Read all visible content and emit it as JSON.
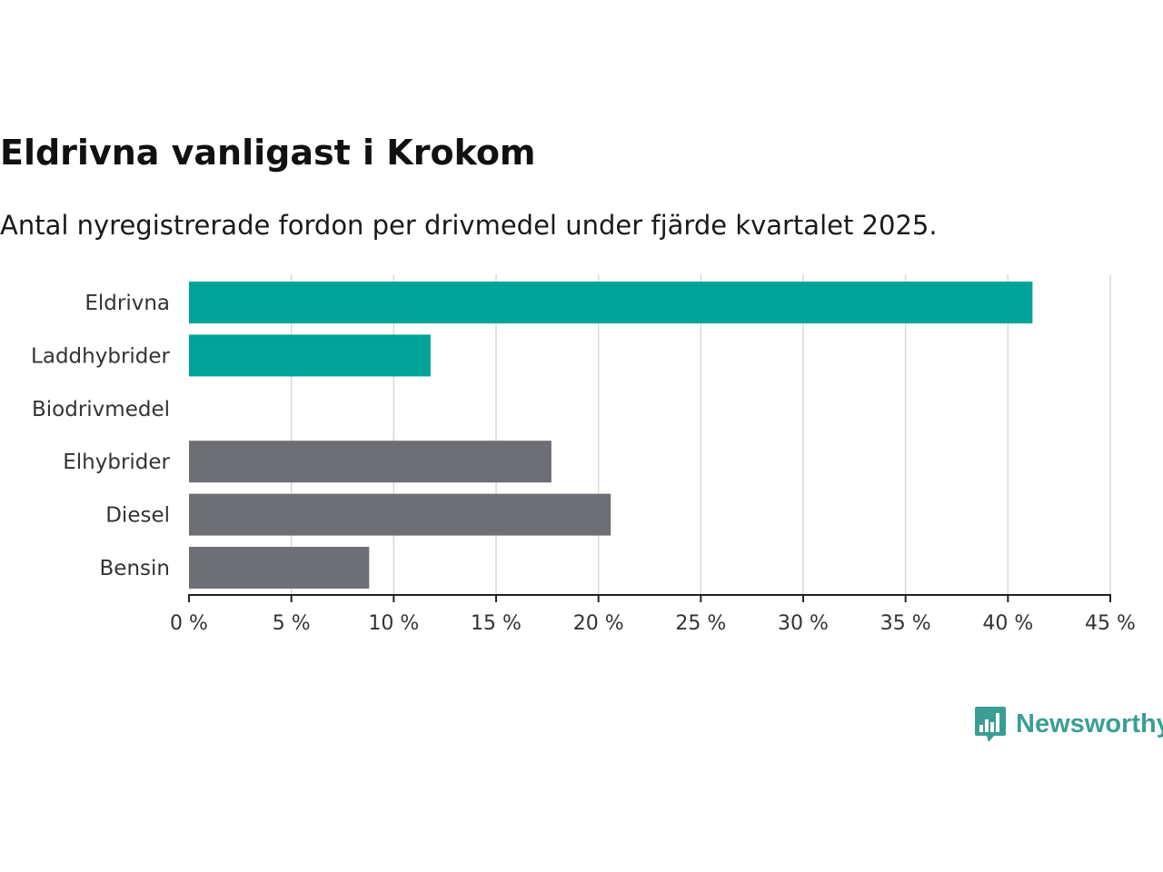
{
  "header": {
    "title": "Eldrivna vanligast i Krokom",
    "subtitle": "Antal nyregistrerade fordon per drivmedel under fjärde kvartalet 2025."
  },
  "brand": {
    "name": "Newsworthy",
    "logo_icon": "chart-bubble-icon",
    "color": "#3a9e94"
  },
  "colors": {
    "highlight": "#00a398",
    "muted": "#6e6e75",
    "grid": "#d9d9d9",
    "axis": "#222222"
  },
  "chart_data": {
    "type": "bar",
    "orientation": "horizontal",
    "title": "Eldrivna vanligast i Krokom",
    "subtitle": "Antal nyregistrerade fordon per drivmedel under fjärde kvartalet 2025.",
    "xlabel": "",
    "ylabel": "",
    "categories": [
      "Eldrivna",
      "Laddhybrider",
      "Biodrivmedel",
      "Elhybrider",
      "Diesel",
      "Bensin"
    ],
    "values": [
      41.2,
      11.8,
      0,
      17.7,
      20.6,
      8.8
    ],
    "highlight": [
      true,
      true,
      false,
      false,
      false,
      false
    ],
    "xlim": [
      0,
      45
    ],
    "xticks": [
      0,
      5,
      10,
      15,
      20,
      25,
      30,
      35,
      40,
      45
    ],
    "xtick_labels": [
      "0 %",
      "5 %",
      "10 %",
      "15 %",
      "20 %",
      "25 %",
      "30 %",
      "35 %",
      "40 %",
      "45 %"
    ],
    "grid": true,
    "legend": "none"
  }
}
